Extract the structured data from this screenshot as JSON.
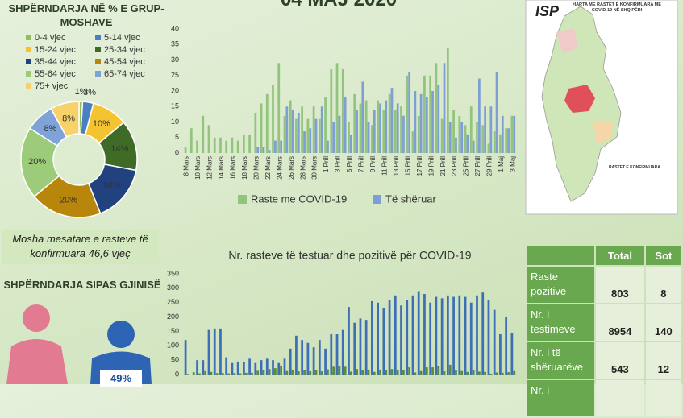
{
  "header": {
    "title": "04 MAJ 2020"
  },
  "average_age": "Mosha mesatare e rasteve të konfirmuara 46,6 vjeç",
  "gender": {
    "title": "SHPËRNDARJA SIPAS GJINISË",
    "male_share": "49%"
  },
  "map": {
    "logo": "ISP",
    "title": "HARTA ME RASTET E KONFIRMUARA ME COVID-19 NË SHQIPËRI",
    "legend_title": "RASTET E KONFIRMUARA"
  },
  "table": {
    "header": [
      "Total",
      "Sot"
    ],
    "rows": [
      [
        "Raste pozitive",
        "803",
        "8"
      ],
      [
        "Nr. i testimeve",
        "8954",
        "140"
      ],
      [
        "Nr. i të shëruarëve",
        "543",
        "12"
      ],
      [
        "Nr. i"
      ]
    ]
  },
  "chart_data": [
    {
      "type": "pie",
      "title": "SHPËRNDARJA NË % E GRUP-MOSHAVE",
      "categories": [
        "0-4 vjec",
        "5-14 vjec",
        "15-24 vjec",
        "25-34 vjec",
        "35-44 vjec",
        "45-54 vjec",
        "55-64 vjec",
        "65-74 vjec",
        "75+ vjec"
      ],
      "values": [
        1,
        3,
        10,
        14,
        16,
        20,
        20,
        8,
        8
      ],
      "value_labels": [
        "1%",
        "3%",
        "10%",
        "14%",
        "16%",
        "20%",
        "20%",
        "8%",
        "8%"
      ],
      "colors": [
        "#8fbf5a",
        "#4a7fc1",
        "#f4c430",
        "#3f6b27",
        "#22427f",
        "#b8860b",
        "#9ccc7a",
        "#7fa3d6",
        "#f7d26a"
      ]
    },
    {
      "type": "bar",
      "categories": [
        "8 Mars",
        null,
        "10 Mars",
        null,
        "12 Mars",
        null,
        "14 Mars",
        null,
        "16 Mars",
        null,
        "18 Mars",
        null,
        "20 Mars",
        null,
        "22 Mars",
        null,
        "24 Mars",
        null,
        "26 Mars",
        null,
        "28 Mars",
        null,
        "30 Mars",
        null,
        "1 Prill",
        null,
        "3 Prill",
        null,
        "5 Prill",
        null,
        "7 Prill",
        null,
        "9 Prill",
        null,
        "11 Prill",
        null,
        "13 Prill",
        null,
        "15 Prill",
        null,
        "17 Prill",
        null,
        "19 Prill",
        null,
        "21 Prill",
        null,
        "23 Prill",
        null,
        "25 Prill",
        null,
        "27 Prill",
        null,
        "29 Prill",
        null,
        "1 Maj",
        null,
        "3 Maj"
      ],
      "series": [
        {
          "name": "Raste me COVID-19",
          "color": "#93c47d",
          "values": [
            2,
            8,
            4,
            12,
            9,
            5,
            5,
            4,
            5,
            4,
            6,
            6,
            13,
            16,
            19,
            22,
            29,
            12,
            17,
            11,
            15,
            11,
            15,
            11,
            18,
            27,
            29,
            27,
            10,
            19,
            16,
            17,
            9,
            17,
            14,
            19,
            14,
            15,
            25,
            7,
            12,
            25,
            25,
            29,
            11,
            34,
            14,
            12,
            9,
            15,
            10,
            9,
            3,
            7,
            6,
            8,
            12
          ]
        },
        {
          "name": "Të shëruar",
          "color": "#7f9fd4",
          "values": [
            0,
            0,
            0,
            0,
            0,
            0,
            0,
            0,
            0,
            0,
            0,
            0,
            2,
            2,
            1,
            4,
            4,
            15,
            14,
            13,
            7,
            8,
            11,
            15,
            4,
            10,
            12,
            18,
            6,
            14,
            23,
            10,
            14,
            16,
            17,
            21,
            16,
            12,
            26,
            20,
            19,
            18,
            20,
            22,
            29,
            10,
            5,
            10,
            6,
            4,
            24,
            15,
            15,
            26,
            12,
            8,
            12
          ]
        }
      ],
      "ylim": [
        0,
        40
      ],
      "yticks": [
        0,
        5,
        10,
        15,
        20,
        25,
        30,
        35,
        40
      ],
      "legend": "bottom"
    },
    {
      "type": "bar",
      "title": "Nr. rasteve të testuar dhe pozitivë për COVID-19",
      "series": [
        {
          "color": "#3d6fb6",
          "values": [
            120,
            0,
            50,
            50,
            155,
            160,
            160,
            60,
            40,
            45,
            45,
            55,
            40,
            50,
            55,
            50,
            40,
            55,
            90,
            135,
            120,
            110,
            95,
            120,
            90,
            140,
            140,
            155,
            235,
            180,
            195,
            190,
            255,
            250,
            230,
            260,
            275,
            240,
            260,
            275,
            290,
            280,
            250,
            270,
            265,
            275,
            270,
            275,
            270,
            250,
            275,
            285,
            260,
            225,
            140,
            200,
            145
          ]
        },
        {
          "color": "#5b8a3a",
          "values": [
            2,
            8,
            4,
            12,
            9,
            5,
            5,
            4,
            5,
            4,
            6,
            6,
            13,
            16,
            19,
            22,
            29,
            12,
            17,
            11,
            15,
            11,
            15,
            11,
            18,
            27,
            29,
            27,
            10,
            19,
            16,
            17,
            9,
            17,
            14,
            19,
            14,
            15,
            25,
            7,
            12,
            25,
            25,
            29,
            11,
            34,
            14,
            12,
            9,
            15,
            10,
            9,
            3,
            7,
            6,
            8,
            12
          ]
        }
      ],
      "ylim": [
        0,
        350
      ],
      "yticks": [
        0,
        50,
        100,
        150,
        200,
        250,
        300,
        350
      ],
      "stacked": false
    }
  ]
}
